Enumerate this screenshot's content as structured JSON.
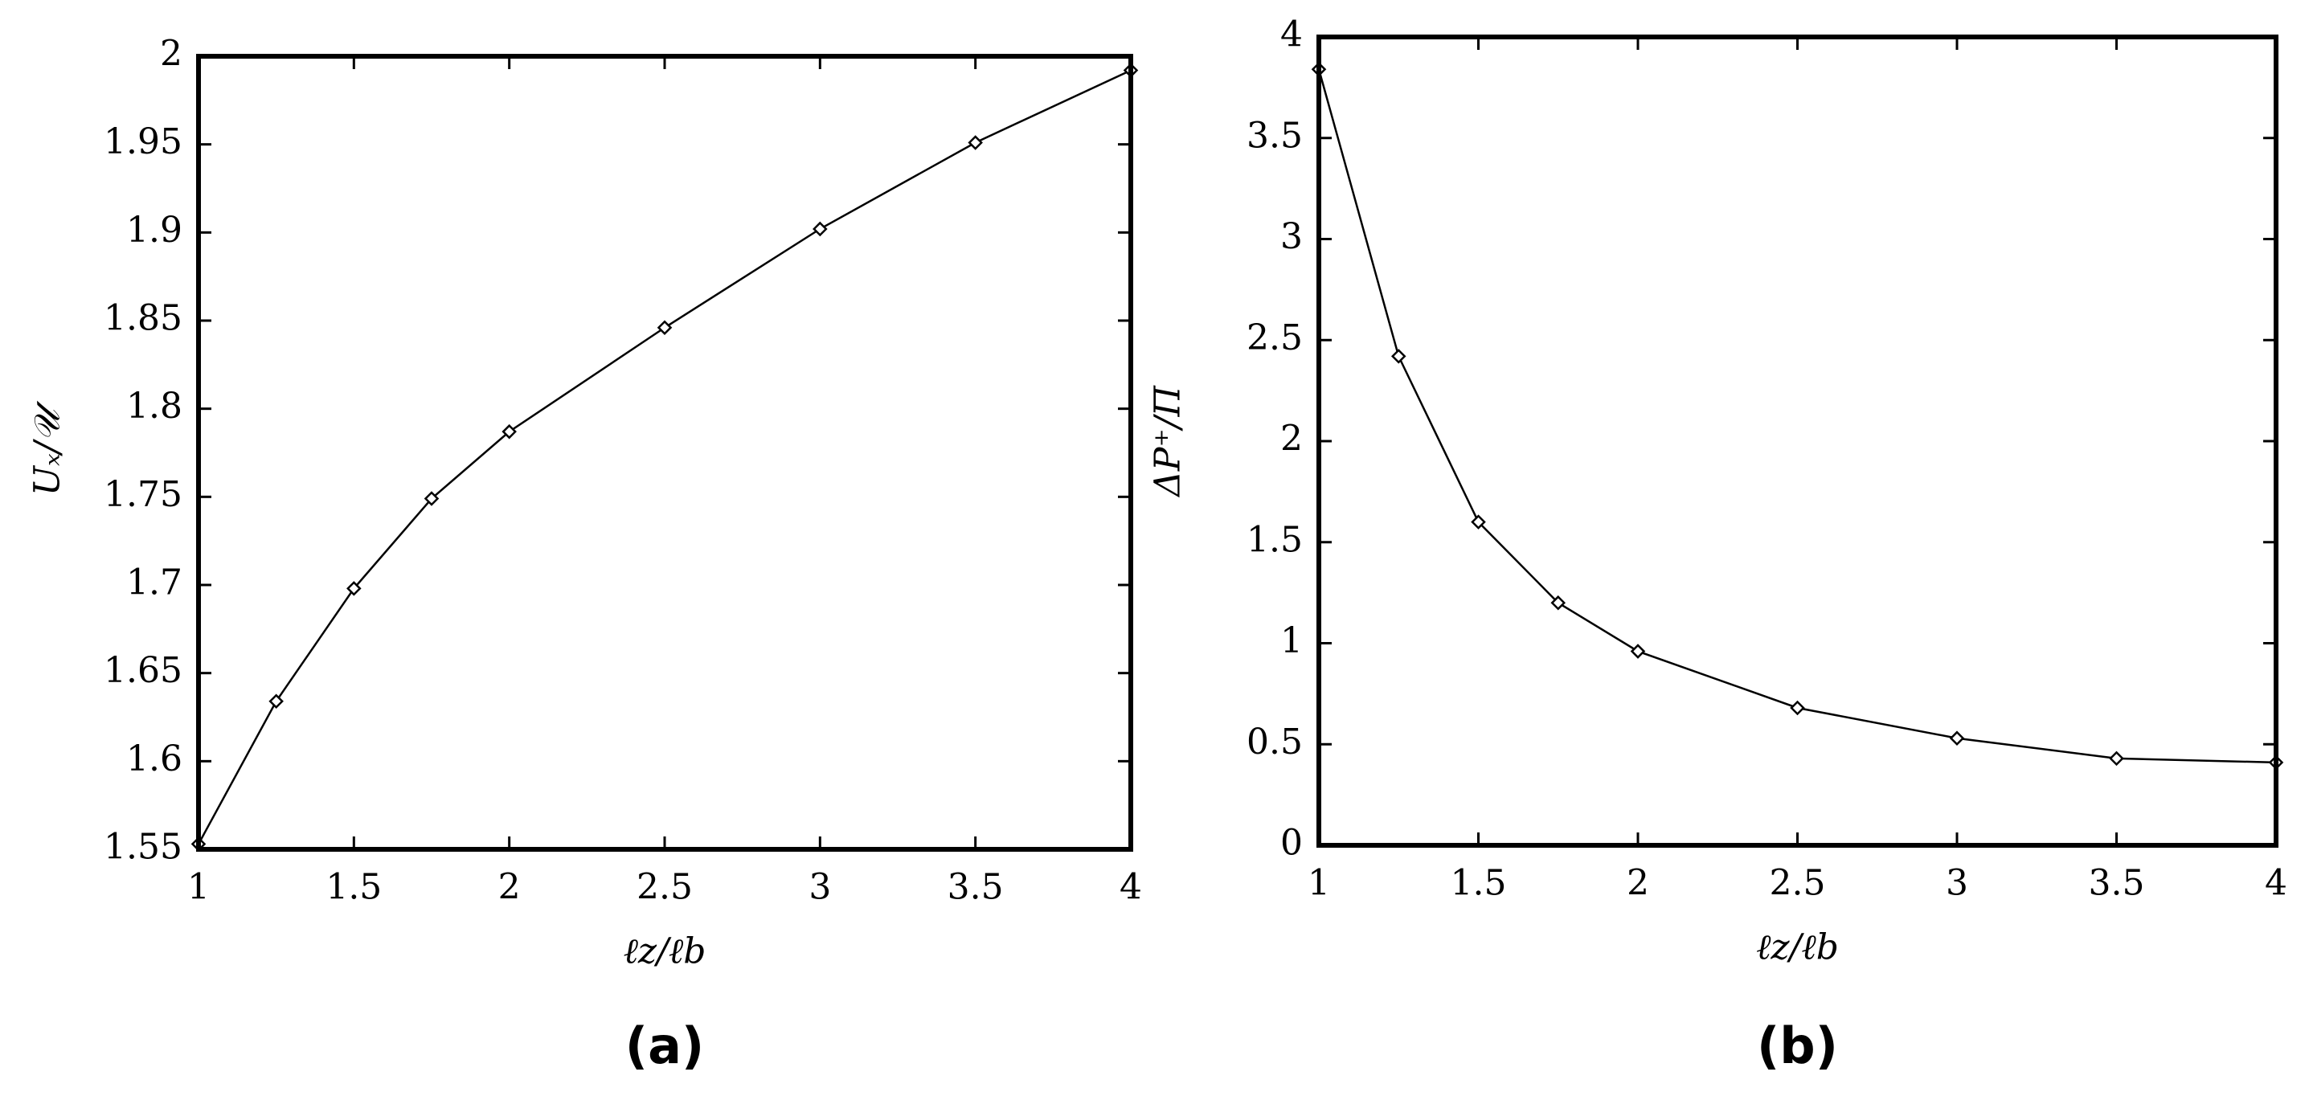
{
  "chart_data": [
    {
      "type": "line",
      "panel_label": "(a)",
      "x_label": "ℓz/ℓb",
      "y_label": "Uₓ/𝒰",
      "x": [
        1,
        1.25,
        1.5,
        1.75,
        2,
        2.5,
        3,
        3.5,
        4
      ],
      "series": [
        {
          "color": "#000000",
          "values": [
            1.553,
            1.634,
            1.698,
            1.749,
            1.787,
            1.846,
            1.902,
            1.951,
            1.992
          ]
        }
      ],
      "xlim": [
        1,
        4
      ],
      "xticks": [
        1,
        1.5,
        2,
        2.5,
        3,
        3.5,
        4
      ],
      "ylim": [
        1.55,
        2
      ],
      "yticks": [
        1.55,
        1.6,
        1.65,
        1.7,
        1.75,
        1.8,
        1.85,
        1.9,
        1.95,
        2
      ]
    },
    {
      "type": "line",
      "panel_label": "(b)",
      "x_label": "ℓz/ℓb",
      "y_label": "ΔP⁺/Π",
      "x": [
        1,
        1.25,
        1.5,
        1.75,
        2,
        2.5,
        3,
        3.5,
        4
      ],
      "series": [
        {
          "color": "#000000",
          "values": [
            3.84,
            2.42,
            1.6,
            1.2,
            0.96,
            0.68,
            0.53,
            0.43,
            0.41
          ]
        }
      ],
      "xlim": [
        1,
        4
      ],
      "xticks": [
        1,
        1.5,
        2,
        2.5,
        3,
        3.5,
        4
      ],
      "ylim": [
        0,
        4
      ],
      "yticks": [
        0,
        0.5,
        1,
        1.5,
        2,
        2.5,
        3,
        3.5,
        4
      ]
    }
  ]
}
